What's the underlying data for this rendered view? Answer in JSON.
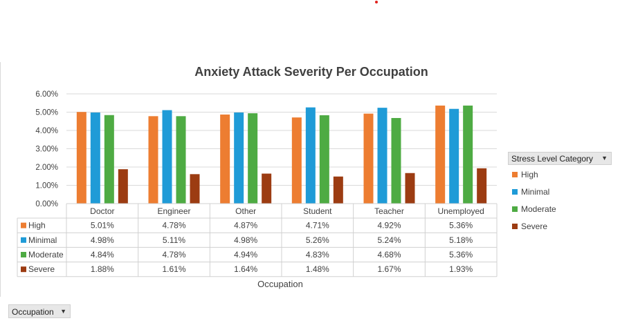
{
  "chart_data": {
    "type": "bar",
    "title": "Anxiety Attack Severity Per Occupation",
    "xlabel": "Occupation",
    "ylabel": "",
    "ylim": [
      0,
      6
    ],
    "yticks": [
      "0.00%",
      "1.00%",
      "2.00%",
      "3.00%",
      "4.00%",
      "5.00%",
      "6.00%"
    ],
    "categories": [
      "Doctor",
      "Engineer",
      "Other",
      "Student",
      "Teacher",
      "Unemployed"
    ],
    "series": [
      {
        "name": "High",
        "color": "#ed7d31",
        "values": [
          5.01,
          4.78,
          4.87,
          4.71,
          4.92,
          5.36
        ],
        "labels": [
          "5.01%",
          "4.78%",
          "4.87%",
          "4.71%",
          "4.92%",
          "5.36%"
        ]
      },
      {
        "name": "Minimal",
        "color": "#1f9bd7",
        "values": [
          4.98,
          5.11,
          4.98,
          5.26,
          5.24,
          5.18
        ],
        "labels": [
          "4.98%",
          "5.11%",
          "4.98%",
          "5.26%",
          "5.24%",
          "5.18%"
        ]
      },
      {
        "name": "Moderate",
        "color": "#4eab43",
        "values": [
          4.84,
          4.78,
          4.94,
          4.83,
          4.68,
          5.36
        ],
        "labels": [
          "4.84%",
          "4.78%",
          "4.94%",
          "4.83%",
          "4.68%",
          "5.36%"
        ]
      },
      {
        "name": "Severe",
        "color": "#9c3c12",
        "values": [
          1.88,
          1.61,
          1.64,
          1.48,
          1.67,
          1.93
        ],
        "labels": [
          "1.88%",
          "1.61%",
          "1.64%",
          "1.48%",
          "1.67%",
          "1.93%"
        ]
      }
    ],
    "grid": true,
    "data_table": true,
    "legend_position": "right"
  },
  "legend": {
    "title": "Stress Level Category"
  },
  "filters": {
    "occupation": "Occupation"
  }
}
